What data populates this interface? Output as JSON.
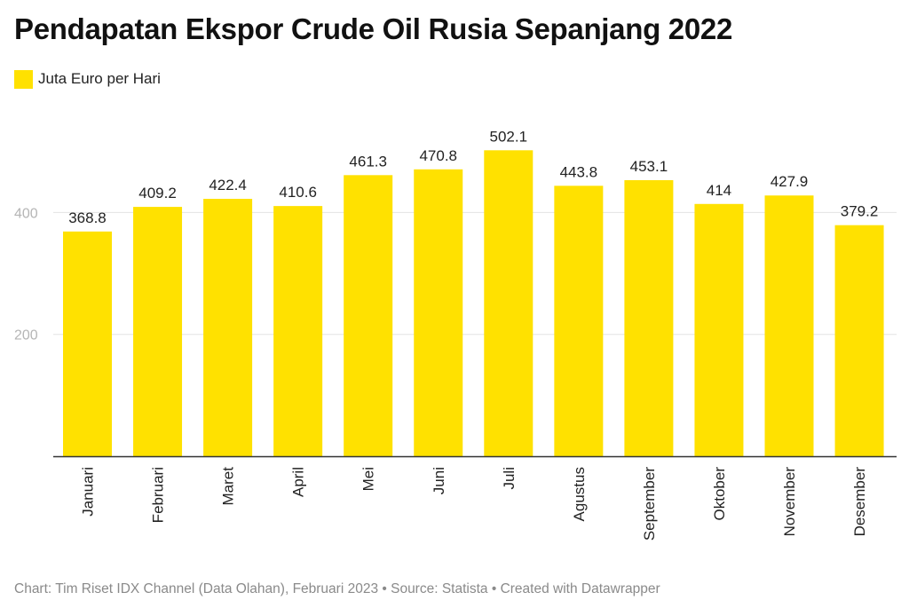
{
  "title": "Pendapatan Ekspor Crude Oil Rusia Sepanjang 2022",
  "legend": {
    "label": "Juta Euro per Hari",
    "color": "#FFE100"
  },
  "footer": "Chart: Tim Riset IDX Channel (Data Olahan), Februari 2023 • Source: Statista • Created with Datawrapper",
  "chart_data": {
    "type": "bar",
    "title": "Pendapatan Ekspor Crude Oil Rusia Sepanjang 2022",
    "categories": [
      "Januari",
      "Februari",
      "Maret",
      "April",
      "Mei",
      "Juni",
      "Juli",
      "Agustus",
      "September",
      "Oktober",
      "November",
      "Desember"
    ],
    "series": [
      {
        "name": "Juta Euro per Hari",
        "values": [
          368.8,
          409.2,
          422.4,
          410.6,
          461.3,
          470.8,
          502.1,
          443.8,
          453.1,
          414,
          427.9,
          379.2
        ],
        "labels": [
          "368.8",
          "409.2",
          "422.4",
          "410.6",
          "461.3",
          "470.8",
          "502.1",
          "443.8",
          "453.1",
          "414",
          "427.9",
          "379.2"
        ],
        "color": "#FFE100"
      }
    ],
    "y_ticks": [
      200,
      400
    ],
    "ylim": [
      0,
      540
    ],
    "xlabel": "",
    "ylabel": "",
    "grid": true,
    "legend_position": "top-left",
    "x_label_orientation": "vertical"
  }
}
